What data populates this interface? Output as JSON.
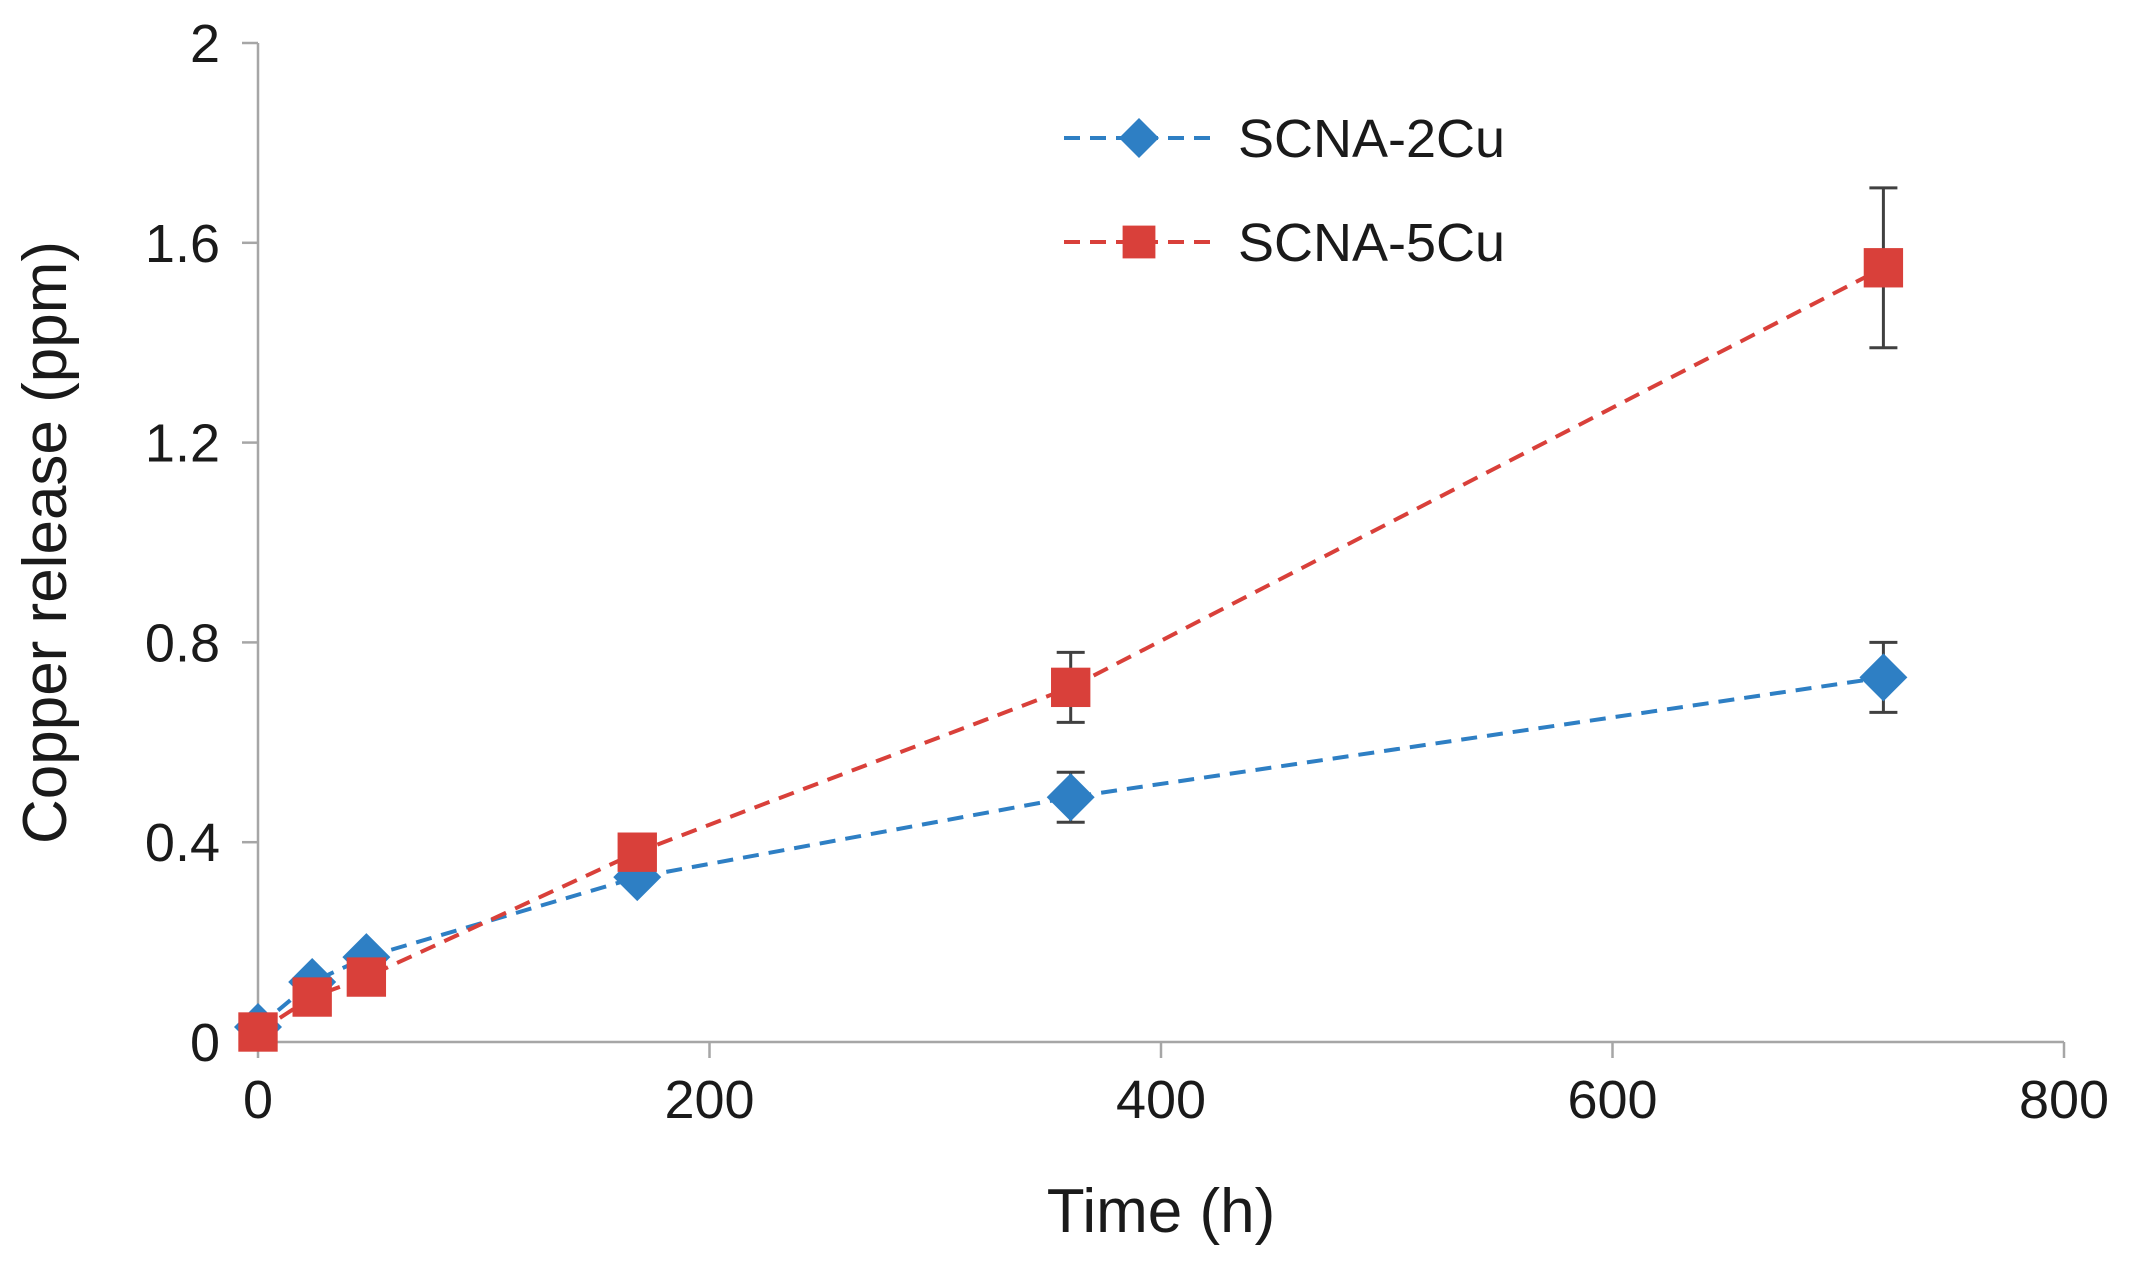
{
  "chart_data": {
    "type": "line",
    "title": "",
    "xlabel": "Time (h)",
    "ylabel": "Copper release (ppm)",
    "xlim": [
      0,
      800
    ],
    "ylim": [
      0,
      2
    ],
    "xticks": [
      0,
      200,
      400,
      600,
      800
    ],
    "yticks": [
      0,
      0.4,
      0.8,
      1.2,
      1.6,
      2
    ],
    "xtick_labels": [
      "0",
      "200",
      "400",
      "600",
      "800"
    ],
    "ytick_labels": [
      "0",
      "0.4",
      "0.8",
      "1.2",
      "1.6",
      "2"
    ],
    "grid": false,
    "legend_position": "top-center",
    "series": [
      {
        "name": "SCNA-2Cu",
        "color": "#2e7fc4",
        "marker": "diamond",
        "line_style": "dashed",
        "x": [
          0,
          24,
          48,
          168,
          360,
          720
        ],
        "y": [
          0.03,
          0.12,
          0.17,
          0.33,
          0.49,
          0.73
        ],
        "error": [
          0,
          0,
          0,
          0,
          0.05,
          0.07
        ]
      },
      {
        "name": "SCNA-5Cu",
        "color": "#d9403a",
        "marker": "square",
        "line_style": "dashed",
        "x": [
          0,
          24,
          48,
          168,
          360,
          720
        ],
        "y": [
          0.02,
          0.09,
          0.13,
          0.38,
          0.71,
          1.55
        ],
        "error": [
          0,
          0,
          0,
          0,
          0.07,
          0.16
        ]
      }
    ]
  }
}
